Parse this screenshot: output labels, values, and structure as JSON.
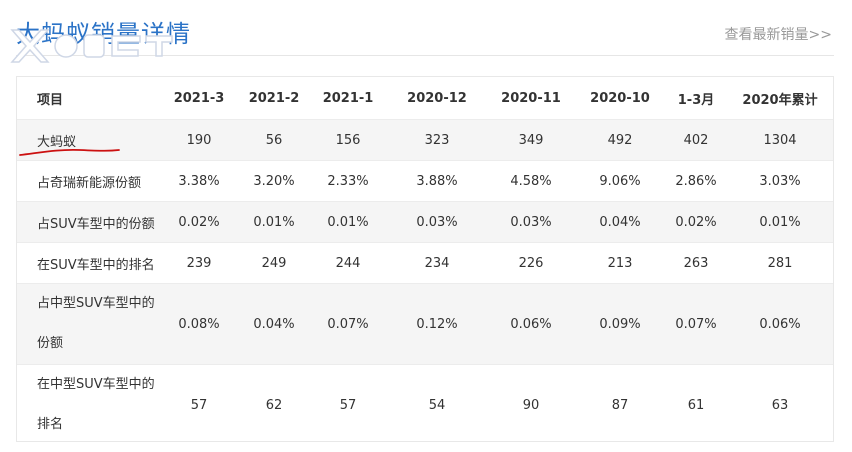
{
  "header": {
    "title": "大蚂蚁销量详情",
    "more_link": "查看最新销量>>"
  },
  "table": {
    "columns": [
      "项目",
      "2021-3",
      "2021-2",
      "2021-1",
      "2020-12",
      "2020-11",
      "2020-10",
      "1-3月",
      "2020年累计"
    ],
    "rows": [
      {
        "label": "大蚂蚁",
        "values": [
          "190",
          "56",
          "156",
          "323",
          "349",
          "492",
          "402",
          "1304"
        ]
      },
      {
        "label": "占奇瑞新能源份额",
        "values": [
          "3.38%",
          "3.20%",
          "2.33%",
          "3.88%",
          "4.58%",
          "9.06%",
          "2.86%",
          "3.03%"
        ]
      },
      {
        "label": "占SUV车型中的份额",
        "values": [
          "0.02%",
          "0.01%",
          "0.01%",
          "0.03%",
          "0.03%",
          "0.04%",
          "0.02%",
          "0.01%"
        ]
      },
      {
        "label": "在SUV车型中的排名",
        "values": [
          "239",
          "249",
          "244",
          "234",
          "226",
          "213",
          "263",
          "281"
        ]
      },
      {
        "label": "占中型SUV车型中的份额",
        "values": [
          "0.08%",
          "0.04%",
          "0.07%",
          "0.12%",
          "0.06%",
          "0.09%",
          "0.07%",
          "0.06%"
        ]
      },
      {
        "label": "在中型SUV车型中的排名",
        "values": [
          "57",
          "62",
          "57",
          "54",
          "90",
          "87",
          "61",
          "63"
        ]
      }
    ]
  },
  "colors": {
    "title": "#2b73c7",
    "link": "#999999",
    "row_alt": "#f5f5f5",
    "annotation": "#cc1111"
  },
  "icons": {
    "logo": "xcar-logo-watermark",
    "annotation": "red-underline-mark"
  }
}
